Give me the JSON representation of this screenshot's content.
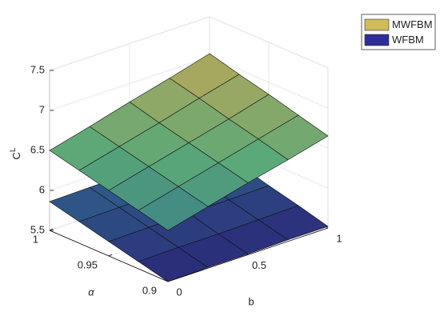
{
  "chart_data": {
    "type": "surface3d",
    "x_label": "b",
    "y_label": "α",
    "z_label": {
      "base": "C",
      "sup": "L"
    },
    "x": [
      0,
      0.25,
      0.5,
      0.75,
      1
    ],
    "y": [
      0.9,
      0.925,
      0.95,
      0.975,
      1
    ],
    "xlim": [
      0,
      1
    ],
    "ylim": [
      0.9,
      1
    ],
    "zlim": [
      5.5,
      7.5
    ],
    "xticks": [
      0,
      0.5,
      1
    ],
    "yticks": [
      0.9,
      0.95,
      1
    ],
    "zticks": [
      5.5,
      6,
      6.5,
      7,
      7.5
    ],
    "grid": true,
    "legend": "top-right",
    "colormap": [
      "#2b2878",
      "#2f6f8e",
      "#5aa878",
      "#b5a85a",
      "#e8d34a"
    ],
    "series": [
      {
        "name": "WFBM",
        "color": "#2e2e96",
        "values": [
          [
            5.5,
            5.51,
            5.51,
            5.52,
            5.52
          ],
          [
            5.59,
            5.6,
            5.6,
            5.61,
            5.62
          ],
          [
            5.68,
            5.69,
            5.7,
            5.7,
            5.71
          ],
          [
            5.77,
            5.78,
            5.79,
            5.8,
            5.81
          ],
          [
            5.86,
            5.87,
            5.88,
            5.89,
            5.9
          ]
        ]
      },
      {
        "name": "MWFBM",
        "color": "#d2bb5e",
        "values": [
          [
            6.14,
            6.27,
            6.4,
            6.52,
            6.65
          ],
          [
            6.23,
            6.36,
            6.49,
            6.62,
            6.75
          ],
          [
            6.32,
            6.45,
            6.58,
            6.71,
            6.85
          ],
          [
            6.41,
            6.54,
            6.67,
            6.81,
            6.94
          ],
          [
            6.5,
            6.63,
            6.77,
            6.9,
            7.04
          ]
        ]
      }
    ]
  }
}
